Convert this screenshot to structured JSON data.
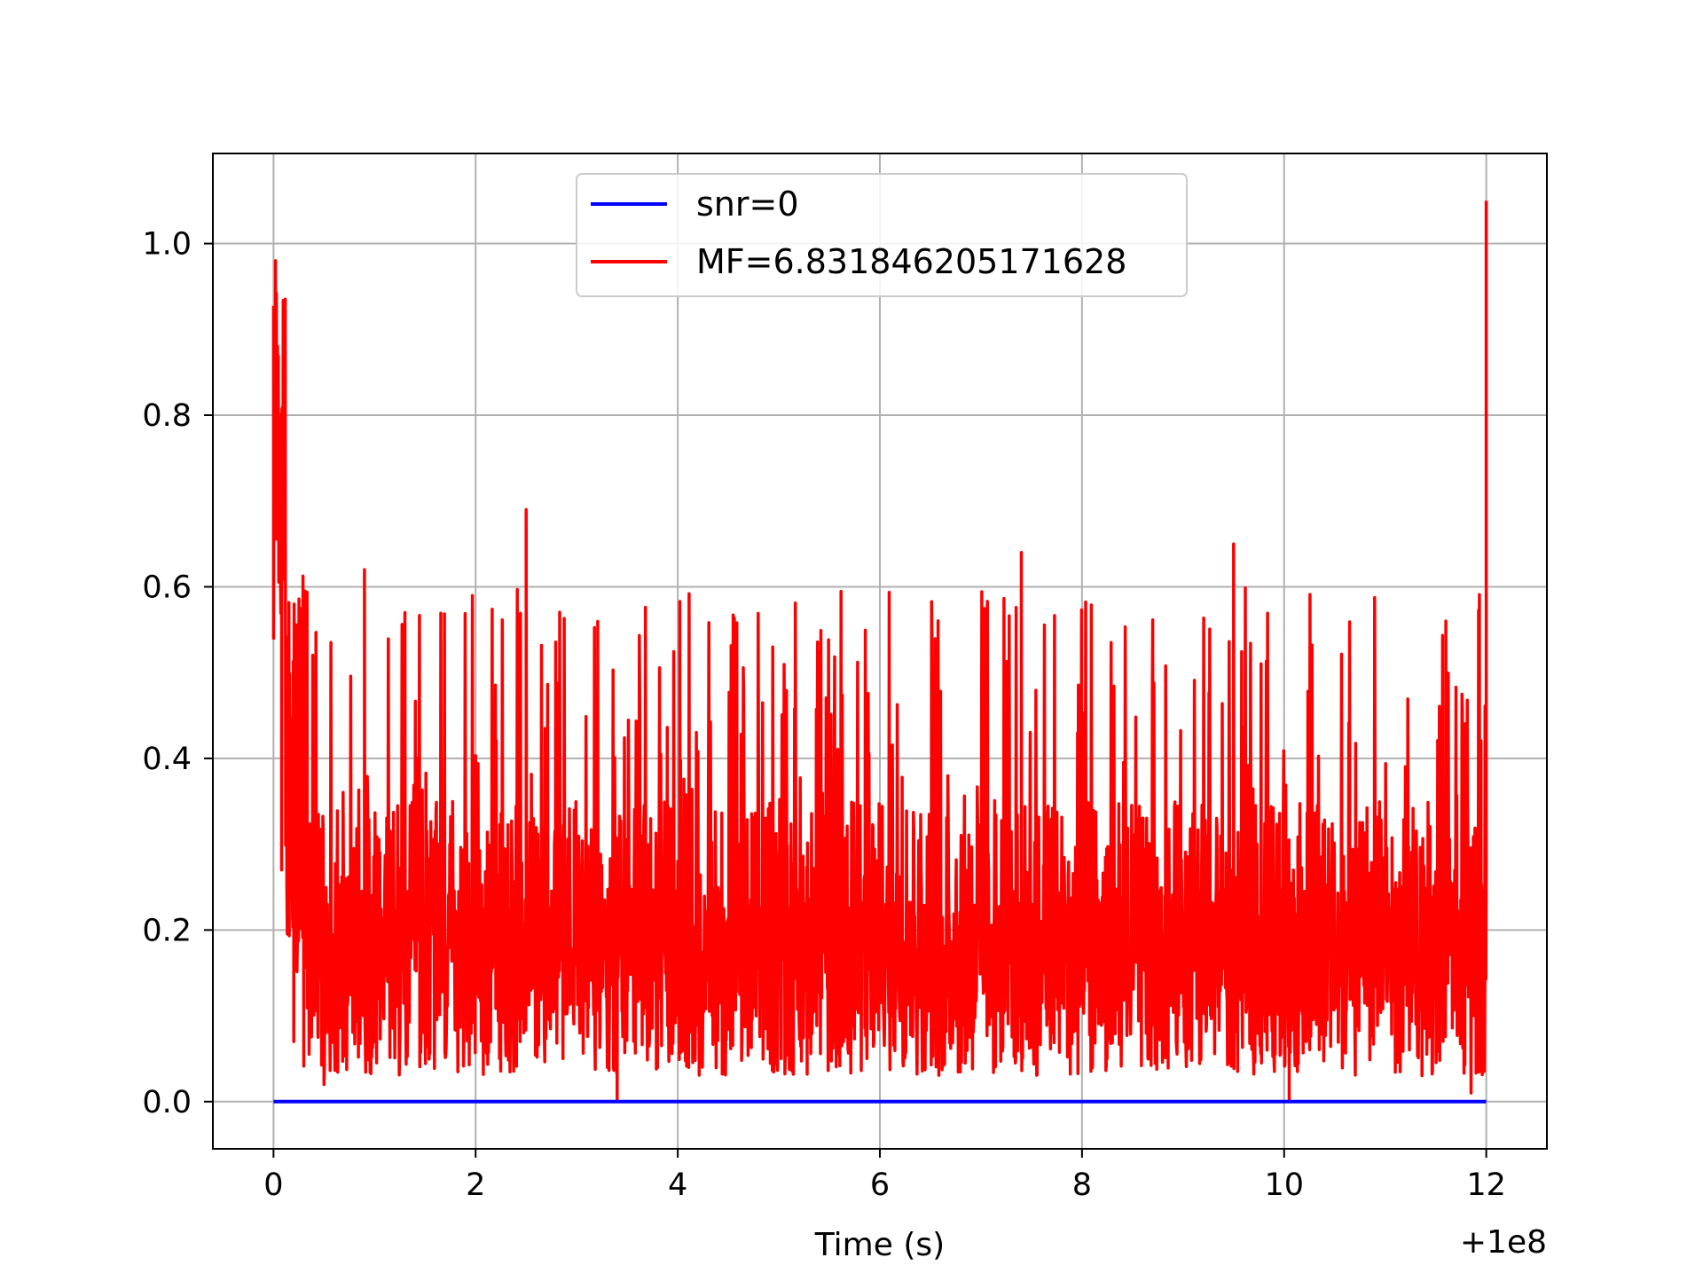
{
  "chart_data": {
    "type": "line",
    "title": "",
    "xlabel": "Time (s)",
    "ylabel": "",
    "x_offset_label": "+1e8",
    "xlim": [
      -0.6,
      12.6
    ],
    "ylim": [
      -0.055,
      1.105
    ],
    "x_ticks": [
      0,
      2,
      4,
      6,
      8,
      10,
      12
    ],
    "x_tick_labels": [
      "0",
      "2",
      "4",
      "6",
      "8",
      "10",
      "12"
    ],
    "y_ticks": [
      0.0,
      0.2,
      0.4,
      0.6,
      0.8,
      1.0
    ],
    "y_tick_labels": [
      "0.0",
      "0.2",
      "0.4",
      "0.6",
      "0.8",
      "1.0"
    ],
    "grid": true,
    "legend_position": "top-center",
    "series": [
      {
        "name": "snr=0",
        "color": "#0000ff",
        "x": [
          0,
          12
        ],
        "y": [
          0.0,
          0.0
        ]
      },
      {
        "name": "MF=6.831846205171628",
        "color": "#ff0000",
        "description_points": {
          "x": [
            0,
            0.02,
            0.04,
            0.06,
            0.08,
            0.1,
            0.15,
            0.2,
            0.3,
            0.5,
            0.9,
            1.3,
            2.0,
            2.5,
            3.4,
            4.0,
            5.0,
            6.0,
            7.4,
            8.0,
            9.5,
            10.05,
            11.0,
            11.6,
            11.85,
            11.95,
            12.0
          ],
          "y": [
            0.54,
            0.98,
            0.88,
            0.62,
            0.27,
            0.62,
            0.2,
            0.07,
            0.46,
            0.02,
            0.62,
            0.57,
            0.2,
            0.69,
            0.0,
            0.28,
            0.17,
            0.3,
            0.64,
            0.2,
            0.65,
            0.0,
            0.2,
            0.56,
            0.01,
            0.22,
            1.05
          ]
        },
        "noise_band": {
          "min": 0.0,
          "typical_max": 0.45,
          "peak_max": 0.7
        }
      }
    ]
  }
}
